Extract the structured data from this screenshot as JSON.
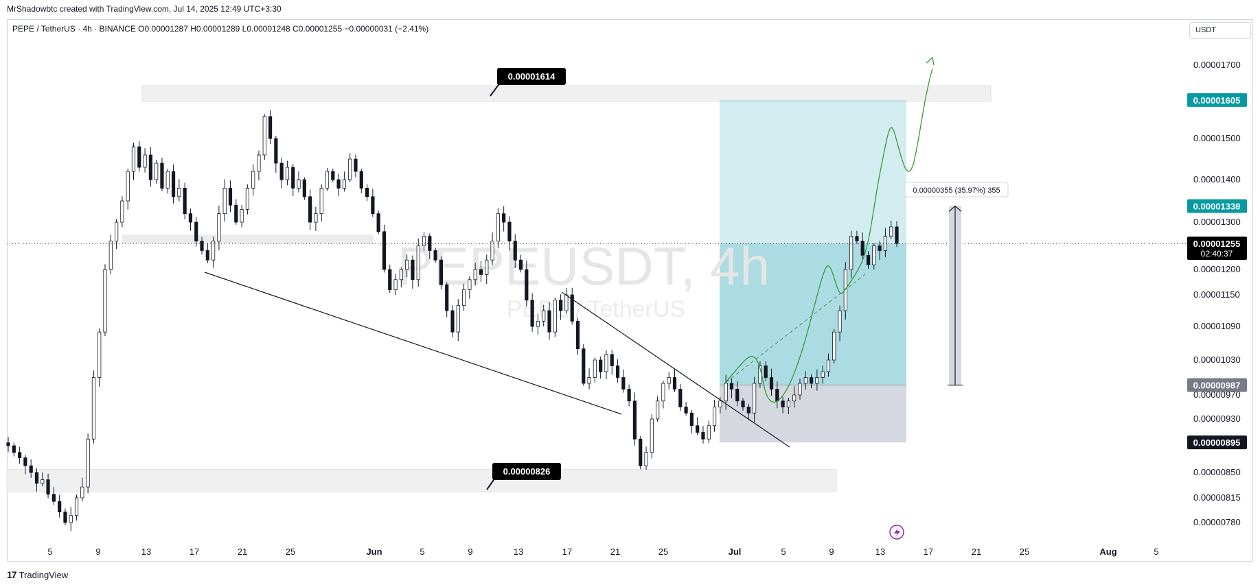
{
  "header": {
    "creator_text": "MrShadowbtc created with TradingView.com, Jul 14, 2025 12:49 UTC+3:30",
    "symbol_line": "PEPE / TetherUS · 4h · BINANCE  O0.00001287  H0.00001289  L0.00001248  C0.00001255  −0.00000031 (−2.41%)",
    "currency": "USDT"
  },
  "watermark": {
    "main": "PEPEUSDT, 4h",
    "sub": "PEPE / TetherUS"
  },
  "footer": {
    "brand": "TradingView",
    "logo_text": "17"
  },
  "colors": {
    "accent_teal": "#089aa3",
    "profit_zone": "#7ec8d4",
    "stop_zone": "#d1d4dc",
    "current_price_bg": "#000000",
    "arrow_green": "#2e9e2e"
  },
  "chart_data": {
    "type": "candlestick",
    "title": "",
    "symbol": "PEPE / TetherUS",
    "timeframe": "4h",
    "exchange": "BINANCE",
    "ohlc_last": {
      "open": 1.287e-05,
      "high": 1.289e-05,
      "low": 1.248e-05,
      "close": 1.255e-05,
      "change": -3.1e-07,
      "change_pct": -2.41
    },
    "x_ticks": [
      "5",
      "9",
      "13",
      "17",
      "21",
      "25",
      "Jun",
      "5",
      "9",
      "13",
      "17",
      "21",
      "25",
      "Jul",
      "5",
      "9",
      "13",
      "17",
      "21",
      "25",
      "Aug",
      "5"
    ],
    "y_ticks": [
      "0.00001700",
      "0.00001500",
      "0.00001400",
      "0.00001300",
      "0.00001200",
      "0.00001150",
      "0.00001090",
      "0.00001030",
      "0.00000970",
      "0.00000930",
      "0.00000850",
      "0.00000815",
      "0.00000780"
    ],
    "y_ticks_values": [
      1.7e-05,
      1.5e-05,
      1.4e-05,
      1.3e-05,
      1.2e-05,
      1.15e-05,
      1.09e-05,
      1.03e-05,
      9.7e-06,
      9.3e-06,
      8.5e-06,
      8.15e-06,
      7.8e-06
    ],
    "price_badges": [
      {
        "label": "0.00001605",
        "value": 1.605e-05,
        "color": "#089aa3"
      },
      {
        "label": "0.00001338",
        "value": 1.338e-05,
        "color": "#089aa3"
      },
      {
        "label": "0.00001255",
        "value": 1.255e-05,
        "color": "#000000",
        "sub": "02:40:37"
      },
      {
        "label": "0.00000987",
        "value": 9.87e-06,
        "color": "#787b86"
      },
      {
        "label": "0.00000895",
        "value": 8.95e-06,
        "color": "#131722"
      }
    ],
    "annotations": {
      "resistance_label": "0.00001614",
      "resistance_value": 1.614e-05,
      "support_label": "0.00000826",
      "support_value": 8.26e-06,
      "measure_label": "0.00000355 (35.97%) 355"
    },
    "position": {
      "entry": 9.87e-06,
      "target": 1.605e-05,
      "stop": 8.95e-06
    },
    "close_series": [
      8.9e-06,
      8.8e-06,
      8.72e-06,
      8.6e-06,
      8.5e-06,
      8.35e-06,
      8.4e-06,
      8.2e-06,
      8.1e-06,
      7.95e-06,
      7.8e-06,
      7.9e-06,
      8.15e-06,
      8.3e-06,
      9e-06,
      1e-05,
      1.08e-05,
      1.2e-05,
      1.26e-05,
      1.3e-05,
      1.35e-05,
      1.42e-05,
      1.48e-05,
      1.43e-05,
      1.46e-05,
      1.4e-05,
      1.44e-05,
      1.38e-05,
      1.42e-05,
      1.36e-05,
      1.38e-05,
      1.32e-05,
      1.3e-05,
      1.26e-05,
      1.24e-05,
      1.22e-05,
      1.26e-05,
      1.32e-05,
      1.38e-05,
      1.34e-05,
      1.3e-05,
      1.33e-05,
      1.38e-05,
      1.42e-05,
      1.46e-05,
      1.56e-05,
      1.5e-05,
      1.44e-05,
      1.4e-05,
      1.43e-05,
      1.38e-05,
      1.4e-05,
      1.36e-05,
      1.3e-05,
      1.32e-05,
      1.38e-05,
      1.42e-05,
      1.4e-05,
      1.38e-05,
      1.4e-05,
      1.45e-05,
      1.42e-05,
      1.38e-05,
      1.36e-05,
      1.32e-05,
      1.28e-05,
      1.2e-05,
      1.16e-05,
      1.18e-05,
      1.2e-05,
      1.22e-05,
      1.18e-05,
      1.25e-05,
      1.27e-05,
      1.24e-05,
      1.22e-05,
      1.17e-05,
      1.12e-05,
      1.08e-05,
      1.13e-05,
      1.16e-05,
      1.18e-05,
      1.2e-05,
      1.19e-05,
      1.22e-05,
      1.26e-05,
      1.32e-05,
      1.3e-05,
      1.26e-05,
      1.22e-05,
      1.2e-05,
      1.14e-05,
      1.09e-05,
      1.1e-05,
      1.12e-05,
      1.08e-05,
      1.14e-05,
      1.12e-05,
      1.15e-05,
      1.1e-05,
      1.05e-05,
      9.9e-06,
      1e-05,
      1.03e-05,
      1.01e-05,
      1.04e-05,
      1.02e-05,
      1e-05,
      9.8e-06,
      9.6e-06,
      9e-06,
      8.6e-06,
      8.8e-06,
      9.3e-06,
      9.6e-06,
      9.9e-06,
      1e-05,
      9.8e-06,
      9.5e-06,
      9.4e-06,
      9.2e-06,
      9.1e-06,
      9e-06,
      9.2e-06,
      9.5e-06,
      9.6e-06,
      9.9e-06,
      9.8e-06,
      9.6e-06,
      9.5e-06,
      9.4e-06,
      9.9e-06,
      1.02e-05,
      1e-05,
      9.8e-06,
      9.6e-06,
      9.5e-06,
      9.6e-06,
      9.7e-06,
      9.9e-06,
      1e-05,
      9.9e-06,
      1e-05,
      1.01e-05,
      1.03e-05,
      1.08e-05,
      1.12e-05,
      1.2e-05,
      1.27e-05,
      1.26e-05,
      1.23e-05,
      1.21e-05,
      1.25e-05,
      1.24e-05,
      1.27e-05,
      1.29e-05,
      1.255e-05
    ]
  }
}
